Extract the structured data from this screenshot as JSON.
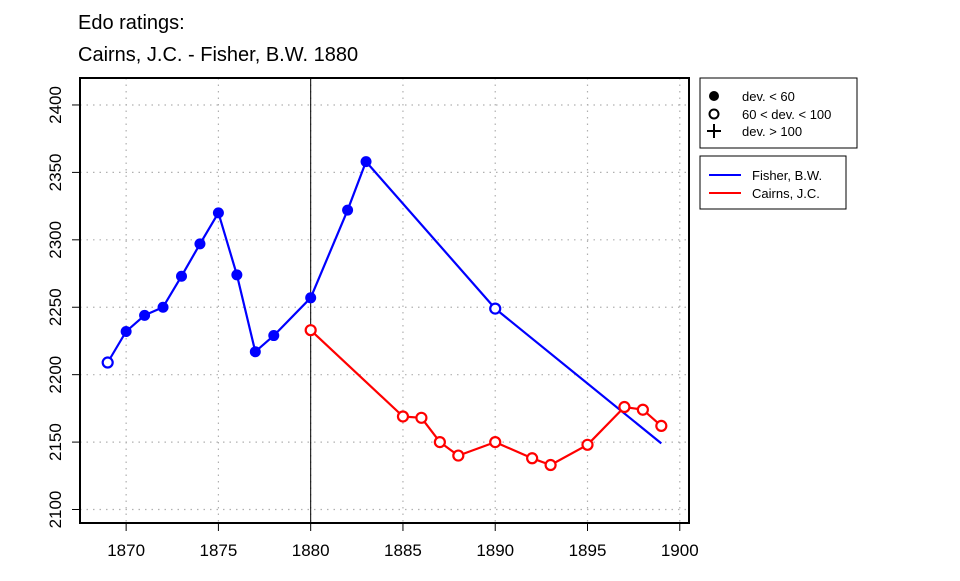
{
  "chart_data": {
    "type": "line",
    "title_lines": [
      "Edo ratings:",
      "Cairns, J.C. - Fisher, B.W. 1880"
    ],
    "xlabel": "",
    "ylabel": "",
    "xlim": [
      1867.5,
      1900.5
    ],
    "ylim": [
      2090,
      2420
    ],
    "x_ticks": [
      "1870",
      "1875",
      "1880",
      "1885",
      "1890",
      "1895",
      "1900"
    ],
    "y_ticks": [
      "2100",
      "2150",
      "2200",
      "2250",
      "2300",
      "2350",
      "2400"
    ],
    "grid": true,
    "reference_line_x": 1880,
    "deviation_legend": [
      {
        "symbol": "filled-circle",
        "label": "dev. < 60"
      },
      {
        "symbol": "open-circle",
        "label": "60 < dev. < 100"
      },
      {
        "symbol": "plus",
        "label": "dev. > 100"
      }
    ],
    "series": [
      {
        "name": "Fisher, B.W.",
        "color": "#0000ff",
        "points": [
          {
            "x": 1869,
            "y": 2209,
            "marker": "open-circle"
          },
          {
            "x": 1870,
            "y": 2232,
            "marker": "filled-circle"
          },
          {
            "x": 1871,
            "y": 2244,
            "marker": "filled-circle"
          },
          {
            "x": 1872,
            "y": 2250,
            "marker": "filled-circle"
          },
          {
            "x": 1873,
            "y": 2273,
            "marker": "filled-circle"
          },
          {
            "x": 1874,
            "y": 2297,
            "marker": "filled-circle"
          },
          {
            "x": 1875,
            "y": 2320,
            "marker": "filled-circle"
          },
          {
            "x": 1876,
            "y": 2274,
            "marker": "filled-circle"
          },
          {
            "x": 1877,
            "y": 2217,
            "marker": "filled-circle"
          },
          {
            "x": 1878,
            "y": 2229,
            "marker": "filled-circle"
          },
          {
            "x": 1880,
            "y": 2257,
            "marker": "filled-circle"
          },
          {
            "x": 1882,
            "y": 2322,
            "marker": "filled-circle"
          },
          {
            "x": 1883,
            "y": 2358,
            "marker": "filled-circle"
          },
          {
            "x": 1890,
            "y": 2249,
            "marker": "open-circle"
          },
          {
            "x": 1899,
            "y": 2149,
            "marker": "none"
          }
        ]
      },
      {
        "name": "Cairns, J.C.",
        "color": "#ff0000",
        "points": [
          {
            "x": 1880,
            "y": 2233,
            "marker": "open-circle"
          },
          {
            "x": 1885,
            "y": 2169,
            "marker": "open-circle"
          },
          {
            "x": 1886,
            "y": 2168,
            "marker": "open-circle"
          },
          {
            "x": 1887,
            "y": 2150,
            "marker": "open-circle"
          },
          {
            "x": 1888,
            "y": 2140,
            "marker": "open-circle"
          },
          {
            "x": 1890,
            "y": 2150,
            "marker": "open-circle"
          },
          {
            "x": 1892,
            "y": 2138,
            "marker": "open-circle"
          },
          {
            "x": 1893,
            "y": 2133,
            "marker": "open-circle"
          },
          {
            "x": 1895,
            "y": 2148,
            "marker": "open-circle"
          },
          {
            "x": 1897,
            "y": 2176,
            "marker": "open-circle"
          },
          {
            "x": 1898,
            "y": 2174,
            "marker": "open-circle"
          },
          {
            "x": 1899,
            "y": 2162,
            "marker": "open-circle"
          }
        ]
      }
    ]
  }
}
